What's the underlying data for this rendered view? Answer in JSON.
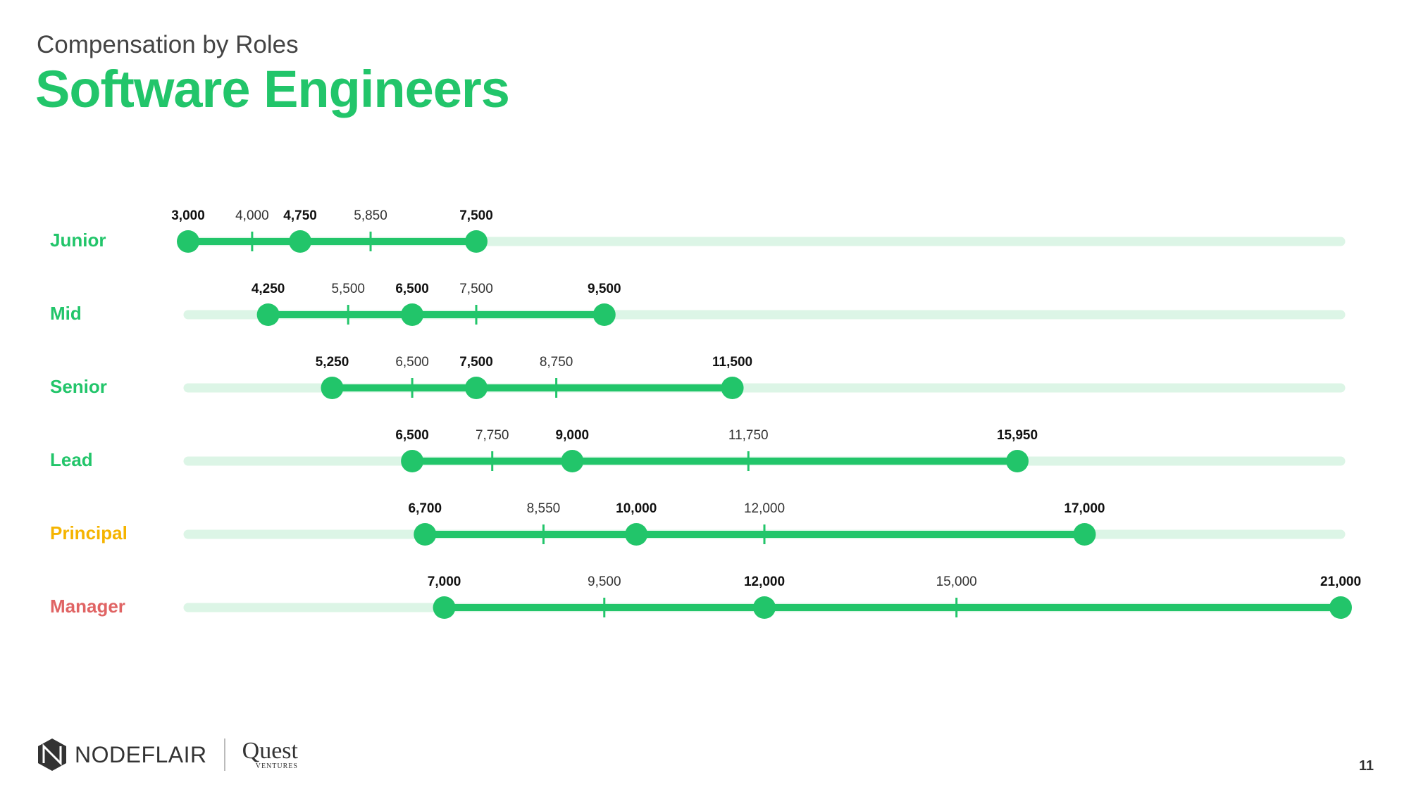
{
  "header": {
    "subtitle": "Compensation by Roles",
    "title": "Software Engineers"
  },
  "chart_data": {
    "type": "range",
    "xlim": [
      3000,
      21000
    ],
    "colors": {
      "track": "#dcf5e6",
      "range": "#22c56a"
    },
    "rows": [
      {
        "label": "Junior",
        "color": "#22c56a",
        "values": [
          3000,
          4000,
          4750,
          5850,
          7500
        ],
        "labels": [
          "3,000",
          "4,000",
          "4,750",
          "5,850",
          "7,500"
        ]
      },
      {
        "label": "Mid",
        "color": "#22c56a",
        "values": [
          4250,
          5500,
          6500,
          7500,
          9500
        ],
        "labels": [
          "4,250",
          "5,500",
          "6,500",
          "7,500",
          "9,500"
        ]
      },
      {
        "label": "Senior",
        "color": "#22c56a",
        "values": [
          5250,
          6500,
          7500,
          8750,
          11500
        ],
        "labels": [
          "5,250",
          "6,500",
          "7,500",
          "8,750",
          "11,500"
        ]
      },
      {
        "label": "Lead",
        "color": "#22c56a",
        "values": [
          6500,
          7750,
          9000,
          11750,
          15950
        ],
        "labels": [
          "6,500",
          "7,750",
          "9,000",
          "11,750",
          "15,950"
        ]
      },
      {
        "label": "Principal",
        "color": "#f5b400",
        "values": [
          6700,
          8550,
          10000,
          12000,
          17000
        ],
        "labels": [
          "6,700",
          "8,550",
          "10,000",
          "12,000",
          "17,000"
        ]
      },
      {
        "label": "Manager",
        "color": "#e06464",
        "values": [
          7000,
          9500,
          12000,
          15000,
          21000
        ],
        "labels": [
          "7,000",
          "9,500",
          "12,000",
          "15,000",
          "21,000"
        ]
      }
    ]
  },
  "footer": {
    "logo_text": "NODEFLAIR",
    "partner_logo": "Quest",
    "partner_sub": "VENTURES",
    "page_number": "11"
  }
}
